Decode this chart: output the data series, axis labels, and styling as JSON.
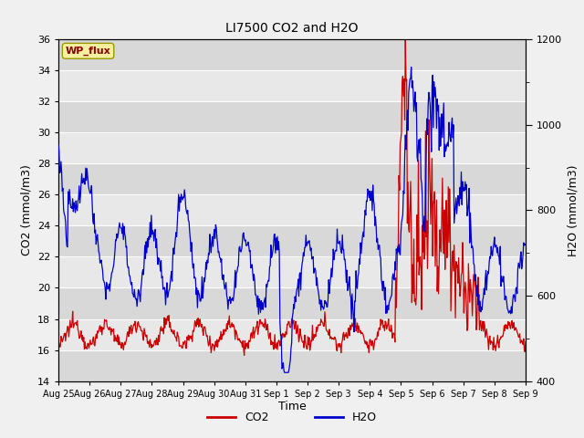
{
  "title": "LI7500 CO2 and H2O",
  "xlabel": "Time",
  "ylabel_left": "CO2 (mmol/m3)",
  "ylabel_right": "H2O (mmol/m3)",
  "ylim_left": [
    14,
    36
  ],
  "ylim_right": [
    400,
    1200
  ],
  "site_label": "WP_flux",
  "background_color": "#f0f0f0",
  "plot_bg_color": "#e8e8e8",
  "co2_color": "#cc0000",
  "h2o_color": "#0000cc",
  "xtick_labels": [
    "Aug 25",
    "Aug 26",
    "Aug 27",
    "Aug 28",
    "Aug 29",
    "Aug 30",
    "Aug 31",
    "Sep 1",
    "Sep 2",
    "Sep 3",
    "Sep 4",
    "Sep 5",
    "Sep 6",
    "Sep 7",
    "Sep 8",
    "Sep 9"
  ],
  "days_total": 15
}
